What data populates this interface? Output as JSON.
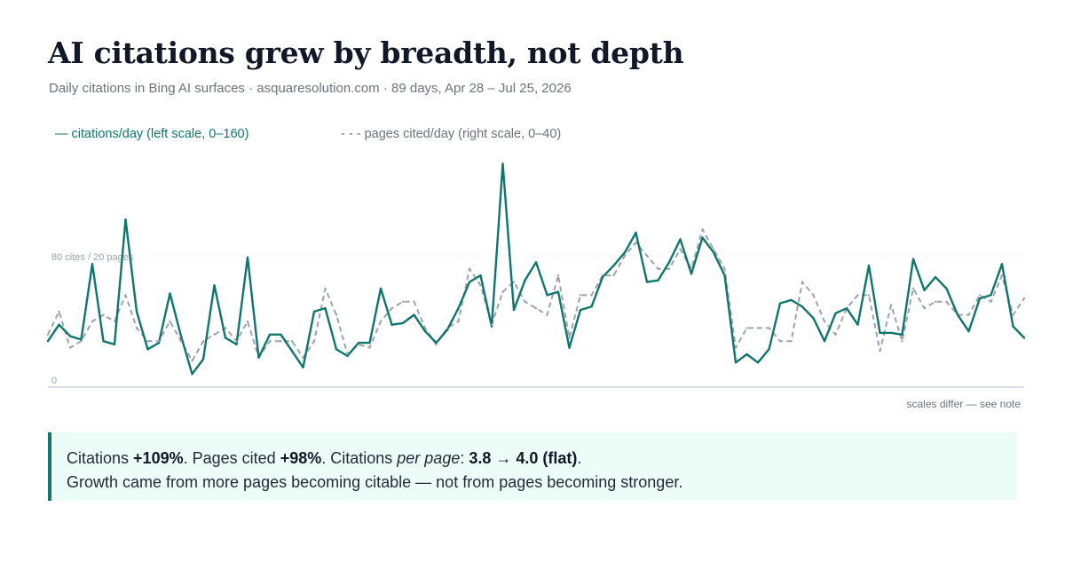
{
  "header": {
    "title": "AI citations grew by breadth, not depth",
    "subtitle": "Daily citations in Bing AI surfaces · asquaresolution.com · 89 days, Apr 28 – Jul 25, 2026"
  },
  "legend": {
    "primary": "— citations/day (left scale, 0–160)",
    "secondary": "- - - pages cited/day (right scale, 0–40)"
  },
  "colors": {
    "primary": "#0f766e",
    "secondary": "#9ca3af",
    "axis": "#d1d5db",
    "grid": "#f3f4f6",
    "callout_bg": "#ecfdf7"
  },
  "chart_data": {
    "type": "line",
    "x_start": "Apr 28, 2026",
    "x_end": "Jul 25, 2026",
    "y_labels": [
      "0",
      "80 cites / 20 pages"
    ],
    "scale_note": "scales differ — see note",
    "grid": false,
    "series": [
      {
        "name": "citations/day (left scale, 0–160)",
        "axis": "left",
        "ylim": [
          0,
          160
        ],
        "style": "solid",
        "values": [
          28,
          38,
          31,
          29,
          75,
          28,
          26,
          102,
          46,
          23,
          27,
          57,
          31,
          8,
          17,
          62,
          30,
          26,
          79,
          18,
          32,
          32,
          22,
          12,
          46,
          48,
          23,
          19,
          27,
          27,
          60,
          38,
          39,
          44,
          34,
          27,
          35,
          48,
          64,
          68,
          37,
          136,
          47,
          65,
          76,
          56,
          58,
          24,
          47,
          49,
          67,
          74,
          82,
          94,
          64,
          65,
          76,
          90,
          69,
          91,
          82,
          68,
          15,
          20,
          15,
          23,
          51,
          53,
          49,
          42,
          28,
          45,
          48,
          38,
          74,
          33,
          33,
          32,
          78,
          59,
          67,
          60,
          44,
          34,
          54,
          56,
          75,
          37,
          30
        ]
      },
      {
        "name": "pages cited/day (right scale, 0–40)",
        "axis": "right",
        "ylim": [
          0,
          40
        ],
        "style": "dashed",
        "values": [
          8,
          11.5,
          6,
          7,
          10,
          11,
          10,
          14,
          9,
          7,
          7,
          10,
          7,
          4,
          7,
          8,
          9,
          7,
          10,
          4.5,
          7,
          7,
          7,
          4.5,
          7,
          15,
          11,
          5,
          6.5,
          6,
          10,
          12,
          13,
          13,
          9,
          6.5,
          9,
          10,
          18,
          15.5,
          9.5,
          14.5,
          16,
          13,
          12,
          11,
          17,
          7.5,
          14,
          14,
          17,
          17,
          20,
          22,
          20,
          18,
          18,
          21,
          18,
          24,
          21,
          18,
          6,
          9,
          9,
          9,
          7,
          7,
          16,
          14,
          10,
          8,
          12,
          14,
          14,
          5.5,
          12.5,
          7,
          15,
          12,
          13,
          13,
          11,
          11,
          14,
          13,
          17,
          11,
          13.5
        ]
      }
    ]
  },
  "callout": {
    "l1_a": "Citations ",
    "l1_b": "+109%",
    "l1_c": ". Pages cited ",
    "l1_d": "+98%",
    "l1_e": ". Citations ",
    "l1_f": "per page",
    "l1_g": ": ",
    "l1_h": "3.8 → 4.0 (flat)",
    "l1_i": ".",
    "line2": "Growth came from more pages becoming citable — not from pages becoming stronger."
  }
}
